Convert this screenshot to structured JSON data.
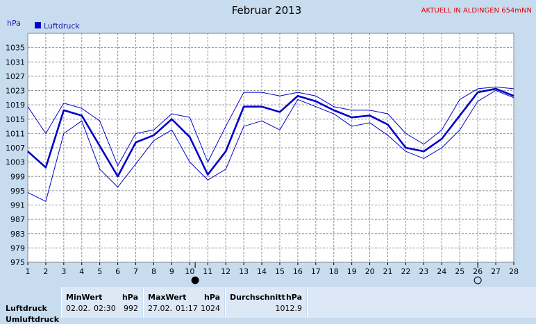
{
  "chart_data": {
    "type": "line",
    "title": "Februar 2013",
    "ylabel": "hPa",
    "ylim": [
      975,
      1039
    ],
    "yticks": [
      975,
      979,
      983,
      987,
      991,
      995,
      999,
      1003,
      1007,
      1011,
      1015,
      1019,
      1023,
      1027,
      1031,
      1035
    ],
    "x": [
      1,
      2,
      3,
      4,
      5,
      6,
      7,
      8,
      9,
      10,
      11,
      12,
      13,
      14,
      15,
      16,
      17,
      18,
      19,
      20,
      21,
      22,
      23,
      24,
      25,
      26,
      27,
      28
    ],
    "xlim": [
      1,
      28
    ],
    "grid": true,
    "legend": {
      "position": "top-left",
      "entries": [
        "Luftdruck"
      ]
    },
    "series": [
      {
        "name": "Luftdruck",
        "role": "mean",
        "color": "#0000cc",
        "values": [
          1006,
          1001.5,
          1017.5,
          1016,
          1007.5,
          999,
          1008.5,
          1010.5,
          1015,
          1010,
          999.5,
          1006,
          1018.5,
          1018.5,
          1017,
          1021.5,
          1020,
          1017.5,
          1015.5,
          1016,
          1013.5,
          1007,
          1006,
          1009.5,
          1016,
          1022.5,
          1023.5,
          1021.5
        ]
      },
      {
        "role": "max",
        "color": "#0000cc",
        "values": [
          1018.5,
          1011,
          1019.5,
          1018,
          1014.5,
          1002,
          1011,
          1012,
          1016.5,
          1015.5,
          1003,
          1013,
          1022.5,
          1022.5,
          1021.5,
          1022.5,
          1021.5,
          1018.5,
          1017.5,
          1017.5,
          1016.5,
          1011,
          1008,
          1012,
          1020.5,
          1023.5,
          1024,
          1023.5
        ]
      },
      {
        "role": "min",
        "color": "#0000cc",
        "values": [
          994.5,
          992,
          1011,
          1014.5,
          1001,
          996,
          1002.5,
          1009,
          1012,
          1003,
          998,
          1001,
          1013,
          1014.5,
          1012,
          1020.5,
          1018.5,
          1016.5,
          1013,
          1014,
          1010.5,
          1006,
          1004,
          1007,
          1012,
          1020,
          1023,
          1021
        ]
      }
    ],
    "moon_phases": [
      {
        "day": 10.3,
        "phase": "new-moon"
      },
      {
        "day": 26,
        "phase": "full-moon"
      }
    ]
  },
  "header": {
    "status": "AKTUELL IN ALDINGEN 654mNN"
  },
  "stats": {
    "row_label": "Luftdruck",
    "row_label_2": "Umluftdruck",
    "min": {
      "header": "MinWert",
      "unit": "hPa",
      "date": "02.02.",
      "time": "02:30",
      "value": "992"
    },
    "max": {
      "header": "MaxWert",
      "unit": "hPa",
      "date": "27.02.",
      "time": "01:17",
      "value": "1024"
    },
    "avg": {
      "header": "Durchschnitt",
      "unit": "hPa",
      "value": "1012.9"
    }
  }
}
